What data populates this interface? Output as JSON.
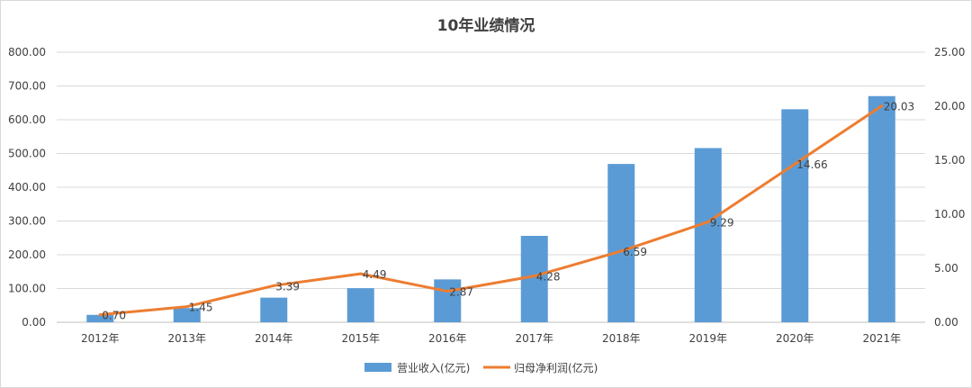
{
  "chart_data": {
    "type": "bar",
    "title": "10年业绩情况",
    "categories": [
      "2012年",
      "2013年",
      "2014年",
      "2015年",
      "2016年",
      "2017年",
      "2018年",
      "2019年",
      "2020年",
      "2021年"
    ],
    "series": [
      {
        "name": "营业收入(亿元)",
        "type": "bar",
        "axis": "left",
        "color": "#5b9bd5",
        "values": [
          22,
          42,
          73,
          101,
          127,
          256,
          469,
          516,
          631,
          670
        ]
      },
      {
        "name": "归母净利润(亿元)",
        "type": "line",
        "axis": "right",
        "color": "#ed7d31",
        "values": [
          0.7,
          1.45,
          3.39,
          4.49,
          2.87,
          4.28,
          6.59,
          9.29,
          14.66,
          20.03
        ],
        "data_labels": [
          "0.70",
          "1.45",
          "3.39",
          "4.49",
          "2.87",
          "4.28",
          "6.59",
          "9.29",
          "14.66",
          "20.03"
        ]
      }
    ],
    "y_left": {
      "min": 0,
      "max": 800,
      "step": 100,
      "tick_labels": [
        "0.00",
        "100.00",
        "200.00",
        "300.00",
        "400.00",
        "500.00",
        "600.00",
        "700.00",
        "800.00"
      ]
    },
    "y_right": {
      "min": 0,
      "max": 25,
      "step": 5,
      "tick_labels": [
        "0.00",
        "5.00",
        "10.00",
        "15.00",
        "20.00",
        "25.00"
      ]
    },
    "grid": true,
    "legend": "bottom"
  }
}
